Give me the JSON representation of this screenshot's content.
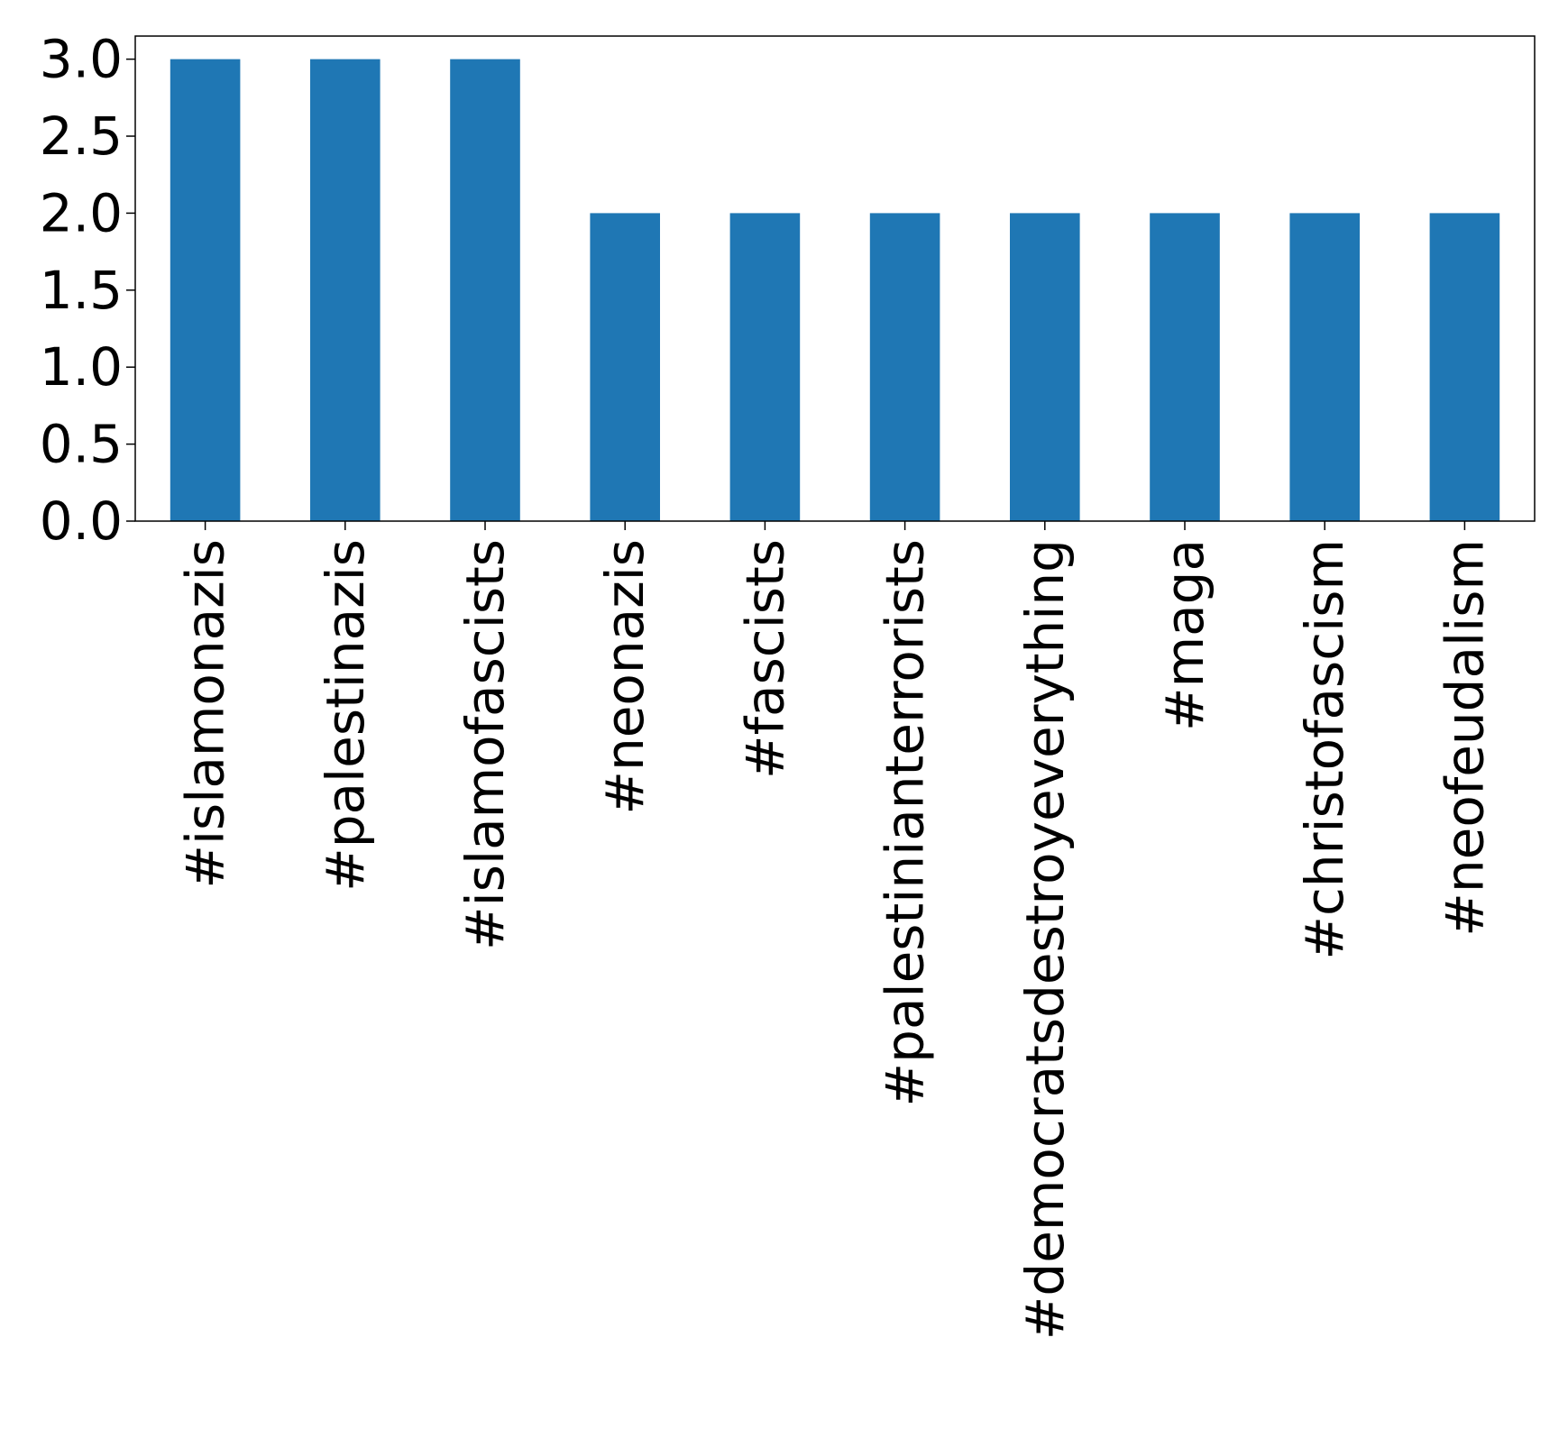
{
  "chart_data": {
    "type": "bar",
    "categories": [
      "#islamonazis",
      "#palestinazis",
      "#islamofascists",
      "#neonazis",
      "#fascists",
      "#palestinianterrorists",
      "#democratsdestroyeverything",
      "#maga",
      "#christofascism",
      "#neofeudalism"
    ],
    "values": [
      3,
      3,
      3,
      2,
      2,
      2,
      2,
      2,
      2,
      2
    ],
    "ylim": [
      0,
      3.15
    ],
    "yticks": [
      "0.0",
      "0.5",
      "1.0",
      "1.5",
      "2.0",
      "2.5",
      "3.0"
    ],
    "bar_color": "#1f77b4",
    "grid": false,
    "legend": "none"
  }
}
